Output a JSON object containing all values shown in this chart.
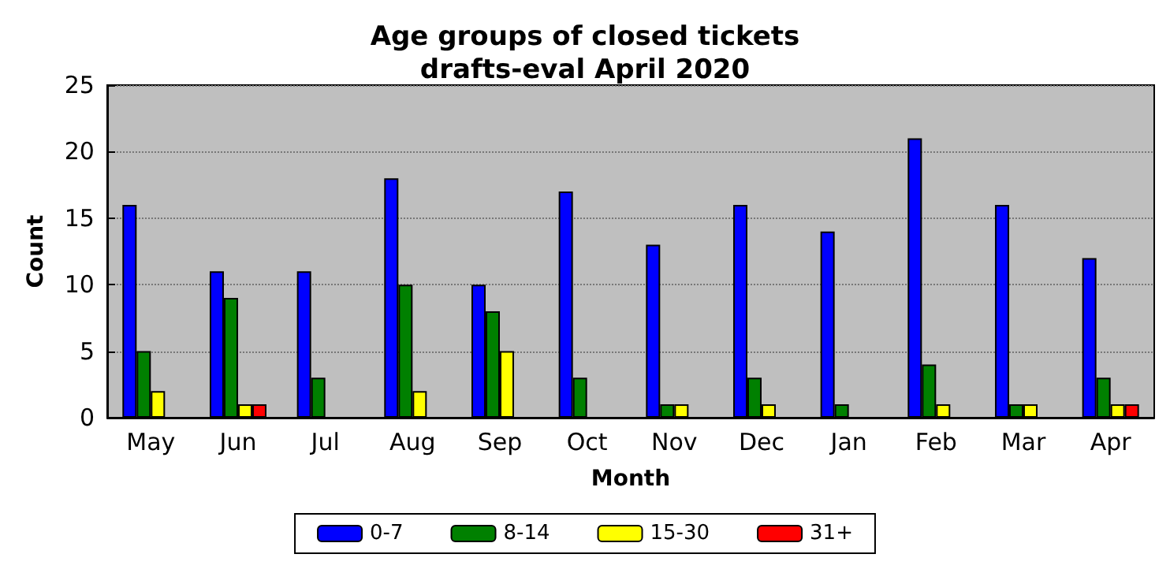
{
  "chart_data": {
    "type": "bar",
    "title": "Age groups of closed tickets\ndrafts-eval April 2020",
    "xlabel": "Month",
    "ylabel": "Count",
    "categories": [
      "May",
      "Jun",
      "Jul",
      "Aug",
      "Sep",
      "Oct",
      "Nov",
      "Dec",
      "Jan",
      "Feb",
      "Mar",
      "Apr"
    ],
    "series": [
      {
        "name": "0-7",
        "color": "#0000ff",
        "values": [
          16,
          11,
          11,
          18,
          10,
          17,
          13,
          16,
          14,
          21,
          16,
          12
        ]
      },
      {
        "name": "8-14",
        "color": "#008000",
        "values": [
          5,
          9,
          3,
          10,
          8,
          3,
          1,
          3,
          1,
          4,
          1,
          3
        ]
      },
      {
        "name": "15-30",
        "color": "#ffff00",
        "values": [
          2,
          1,
          0,
          2,
          5,
          0,
          1,
          1,
          0,
          1,
          1,
          1
        ]
      },
      {
        "name": "31+",
        "color": "#ff0000",
        "values": [
          0,
          1,
          0,
          0,
          0,
          0,
          0,
          0,
          0,
          0,
          0,
          1
        ]
      }
    ],
    "ylim": [
      0,
      25
    ],
    "yticks": [
      0,
      5,
      10,
      15,
      20,
      25
    ],
    "grid": "y",
    "legend": "bottom"
  }
}
